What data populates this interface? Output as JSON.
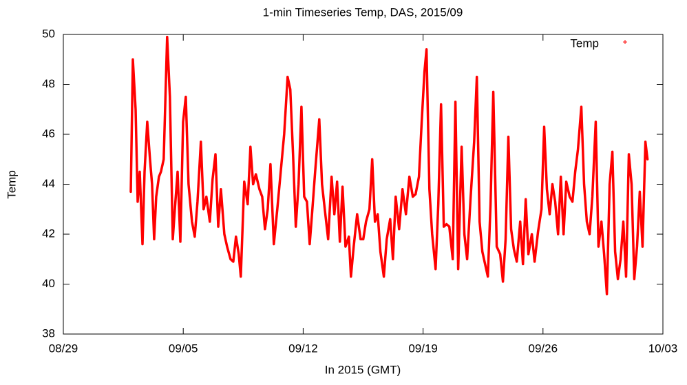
{
  "chart_data": {
    "type": "line",
    "title": "1-min Timeseries Temp, DAS, 2015/09",
    "x_label": "In 2015 (GMT)",
    "y_label": "Temp",
    "legend_position": "top-right",
    "grid": false,
    "xlim": [
      0,
      35
    ],
    "xticks": [
      {
        "value": 0,
        "label": "08/29"
      },
      {
        "value": 7,
        "label": "09/05"
      },
      {
        "value": 14,
        "label": "09/12"
      },
      {
        "value": 21,
        "label": "09/19"
      },
      {
        "value": 28,
        "label": "09/26"
      },
      {
        "value": 35,
        "label": "10/03"
      }
    ],
    "ylim": [
      38,
      50
    ],
    "yticks": [
      38,
      40,
      42,
      44,
      46,
      48,
      50
    ],
    "x": [
      3.94,
      4.06,
      4.22,
      4.34,
      4.46,
      4.62,
      4.74,
      4.9,
      5.06,
      5.18,
      5.3,
      5.42,
      5.58,
      5.7,
      5.86,
      6.06,
      6.22,
      6.39,
      6.51,
      6.67,
      6.83,
      6.99,
      7.15,
      7.31,
      7.51,
      7.67,
      7.83,
      8.03,
      8.19,
      8.35,
      8.55,
      8.71,
      8.88,
      9.04,
      9.2,
      9.4,
      9.56,
      9.76,
      9.92,
      10.08,
      10.24,
      10.36,
      10.56,
      10.76,
      10.92,
      11.08,
      11.24,
      11.45,
      11.61,
      11.77,
      11.93,
      12.09,
      12.29,
      12.49,
      12.69,
      12.89,
      13.09,
      13.25,
      13.41,
      13.57,
      13.73,
      13.9,
      14.06,
      14.22,
      14.38,
      14.54,
      14.7,
      14.94,
      15.1,
      15.26,
      15.46,
      15.66,
      15.82,
      15.98,
      16.14,
      16.3,
      16.47,
      16.67,
      16.79,
      16.95,
      17.15,
      17.35,
      17.51,
      17.67,
      17.87,
      18.03,
      18.19,
      18.35,
      18.51,
      18.71,
      18.88,
      19.08,
      19.24,
      19.4,
      19.6,
      19.8,
      20.0,
      20.2,
      20.4,
      20.56,
      20.76,
      20.92,
      21.08,
      21.2,
      21.37,
      21.53,
      21.73,
      21.89,
      22.05,
      22.21,
      22.37,
      22.53,
      22.73,
      22.89,
      23.05,
      23.25,
      23.41,
      23.57,
      23.77,
      23.98,
      24.14,
      24.3,
      24.46,
      24.62,
      24.78,
      24.94,
      25.1,
      25.3,
      25.5,
      25.66,
      25.82,
      25.98,
      26.14,
      26.3,
      26.47,
      26.67,
      26.83,
      26.99,
      27.15,
      27.35,
      27.51,
      27.71,
      27.91,
      28.07,
      28.23,
      28.39,
      28.55,
      28.71,
      28.88,
      29.04,
      29.2,
      29.36,
      29.56,
      29.72,
      29.88,
      30.04,
      30.24,
      30.4,
      30.56,
      30.72,
      30.88,
      31.08,
      31.24,
      31.41,
      31.57,
      31.73,
      31.89,
      32.05,
      32.21,
      32.37,
      32.53,
      32.69,
      32.85,
      33.01,
      33.17,
      33.33,
      33.49,
      33.65,
      33.81,
      33.98,
      34.1
    ],
    "series": [
      {
        "name": "Temp",
        "color": "#ff0000",
        "values": [
          43.7,
          49.0,
          47.0,
          43.3,
          44.5,
          41.6,
          44.5,
          46.5,
          45.0,
          44.0,
          41.8,
          43.5,
          44.3,
          44.5,
          45.0,
          49.9,
          47.5,
          41.8,
          43.0,
          44.5,
          41.7,
          46.5,
          47.5,
          44.0,
          42.5,
          41.9,
          43.3,
          45.7,
          43.0,
          43.5,
          42.5,
          44.2,
          45.2,
          42.3,
          43.8,
          42.0,
          41.5,
          41.0,
          40.9,
          41.9,
          41.2,
          40.3,
          44.1,
          43.2,
          45.5,
          44.0,
          44.4,
          43.8,
          43.5,
          42.2,
          43.0,
          44.8,
          41.6,
          43.0,
          44.5,
          46.0,
          48.3,
          47.8,
          45.2,
          42.3,
          44.0,
          47.1,
          43.5,
          43.3,
          41.6,
          43.0,
          44.5,
          46.6,
          44.0,
          43.0,
          41.8,
          44.3,
          42.8,
          44.1,
          41.7,
          43.9,
          41.5,
          41.9,
          40.3,
          41.5,
          42.8,
          41.8,
          41.8,
          42.5,
          43.0,
          45.0,
          42.5,
          42.8,
          41.3,
          40.3,
          41.8,
          42.6,
          41.0,
          43.5,
          42.2,
          43.8,
          42.8,
          44.3,
          43.5,
          43.6,
          44.3,
          46.5,
          48.5,
          49.4,
          43.8,
          42.0,
          40.6,
          43.2,
          47.2,
          42.3,
          42.4,
          42.3,
          41.0,
          47.3,
          40.6,
          45.5,
          42.0,
          41.0,
          43.4,
          45.7,
          48.3,
          42.5,
          41.3,
          40.8,
          40.3,
          43.2,
          47.7,
          41.5,
          41.2,
          40.1,
          41.8,
          45.9,
          42.2,
          41.4,
          40.9,
          42.5,
          40.8,
          43.4,
          41.2,
          42.0,
          40.9,
          42.1,
          43.0,
          46.3,
          43.8,
          42.8,
          44.0,
          43.3,
          42.0,
          44.3,
          42.0,
          44.1,
          43.5,
          43.3,
          44.5,
          45.4,
          47.1,
          44.0,
          42.5,
          42.0,
          43.5,
          46.5,
          41.5,
          42.5,
          41.2,
          39.6,
          44.0,
          45.3,
          41.3,
          40.2,
          41.0,
          42.5,
          40.3,
          45.2,
          44.0,
          40.2,
          41.5,
          43.7,
          41.5,
          45.7,
          45.0
        ]
      }
    ]
  }
}
